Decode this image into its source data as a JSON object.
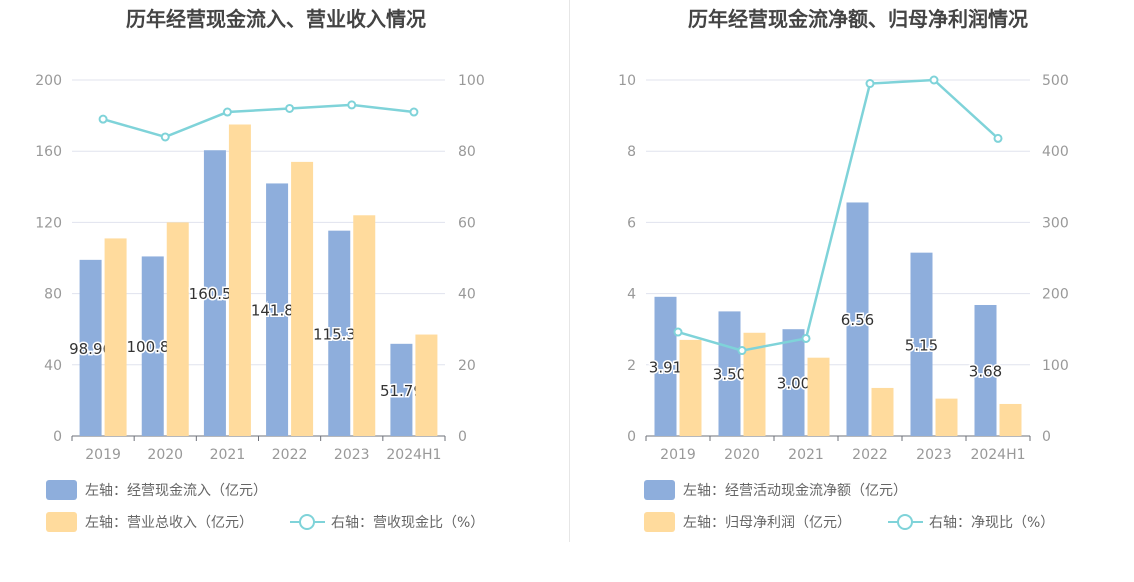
{
  "chart_data": [
    {
      "type": "bar",
      "title": "历年经营现金流入、营业收入情况",
      "categories": [
        "2019",
        "2020",
        "2021",
        "2022",
        "2023",
        "2024H1"
      ],
      "left_axis": {
        "ylim": [
          0,
          200
        ],
        "ticks": [
          "0",
          "40",
          "80",
          "120",
          "160",
          "200"
        ]
      },
      "right_axis": {
        "ylim": [
          0,
          100
        ],
        "ticks": [
          "0",
          "20",
          "40",
          "60",
          "80",
          "100"
        ]
      },
      "grid": true,
      "legend_position": "bottom-left",
      "series": [
        {
          "name": "左轴：经营现金流入（亿元）",
          "type": "bar",
          "axis": "left",
          "color": "#8eaedc",
          "values": [
            98.96,
            100.88,
            160.54,
            141.89,
            115.36,
            51.79
          ],
          "labels": [
            "98.96",
            "100.88",
            "160.54",
            "141.89",
            "115.36",
            "51.79"
          ]
        },
        {
          "name": "左轴：营业总收入（亿元）",
          "type": "bar",
          "axis": "left",
          "color": "#ffdb9d",
          "values": [
            111,
            120,
            175,
            154,
            124,
            57
          ]
        },
        {
          "name": "右轴：营收现金比（%）",
          "type": "line",
          "axis": "right",
          "color": "#7fd3d9",
          "values": [
            89,
            84,
            91,
            92,
            93,
            91
          ]
        }
      ]
    },
    {
      "type": "bar",
      "title": "历年经营现金流净额、归母净利润情况",
      "categories": [
        "2019",
        "2020",
        "2021",
        "2022",
        "2023",
        "2024H1"
      ],
      "left_axis": {
        "ylim": [
          0,
          10
        ],
        "ticks": [
          "0",
          "2",
          "4",
          "6",
          "8",
          "10"
        ]
      },
      "right_axis": {
        "ylim": [
          0,
          500
        ],
        "ticks": [
          "0",
          "100",
          "200",
          "300",
          "400",
          "500"
        ]
      },
      "grid": true,
      "legend_position": "bottom-left",
      "series": [
        {
          "name": "左轴：经营活动现金流净额（亿元）",
          "type": "bar",
          "axis": "left",
          "color": "#8eaedc",
          "values": [
            3.91,
            3.5,
            3.0,
            6.56,
            5.15,
            3.68
          ],
          "labels": [
            "3.91",
            "3.50",
            "3.00",
            "6.56",
            "5.15",
            "3.68"
          ]
        },
        {
          "name": "左轴：归母净利润（亿元）",
          "type": "bar",
          "axis": "left",
          "color": "#ffdb9d",
          "values": [
            2.7,
            2.9,
            2.2,
            1.35,
            1.05,
            0.9
          ]
        },
        {
          "name": "右轴：净现比（%）",
          "type": "line",
          "axis": "right",
          "color": "#7fd3d9",
          "values": [
            146,
            120,
            137,
            495,
            500,
            418
          ]
        }
      ]
    }
  ]
}
